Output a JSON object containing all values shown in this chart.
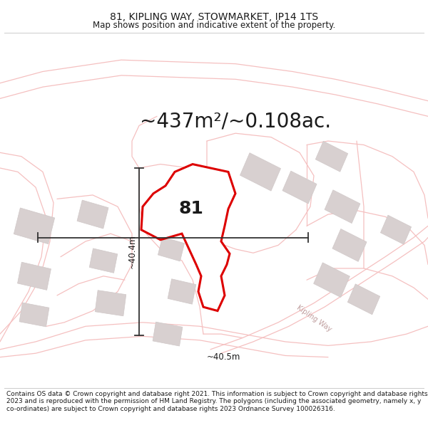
{
  "title": "81, KIPLING WAY, STOWMARKET, IP14 1TS",
  "subtitle": "Map shows position and indicative extent of the property.",
  "area_text": "~437m²/~0.108ac.",
  "property_number": "81",
  "dim_horizontal": "~40.5m",
  "dim_vertical": "~40.4m",
  "road_label": "Kipling Way",
  "copyright_text": "Contains OS data © Crown copyright and database right 2021. This information is subject to Crown copyright and database rights 2023 and is reproduced with the permission of HM Land Registry. The polygons (including the associated geometry, namely x, y co-ordinates) are subject to Crown copyright and database rights 2023 Ordnance Survey 100026316.",
  "bg_color": "#ffffff",
  "map_bg_color": "#f7f4f4",
  "plot_fill_color": "#ffffff",
  "plot_edge_color": "#dd0000",
  "road_color": "#f5c0c0",
  "building_fill": "#d8d0d0",
  "building_edge": "#d0c8c8",
  "text_color": "#1a1a1a",
  "dim_line_color": "#333333",
  "title_fontsize": 10,
  "subtitle_fontsize": 8.5,
  "area_fontsize": 20,
  "dim_fontsize": 8.5,
  "copyright_fontsize": 6.5,
  "road_label_color": "#c0a0a0"
}
